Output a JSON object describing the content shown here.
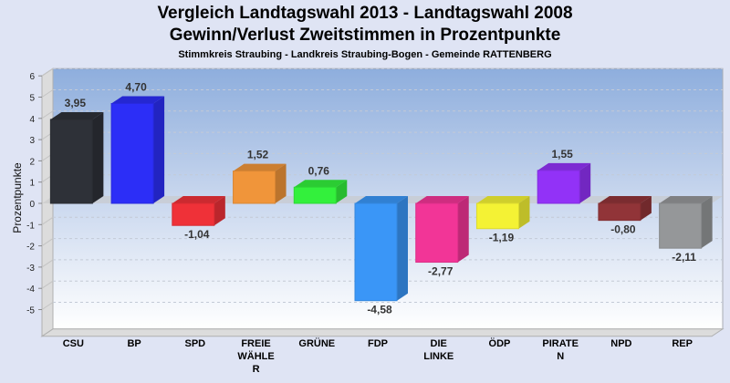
{
  "header": {
    "title_line1": "Vergleich Landtagswahl 2013 - Landtagswahl 2008",
    "title_line2": "Gewinn/Verlust Zweitstimmen in Prozentpunkte",
    "subtitle": "Stimmkreis Straubing - Landkreis Straubing-Bogen - Gemeinde RATTENBERG"
  },
  "chart_data": {
    "type": "bar",
    "title": "Vergleich Landtagswahl 2013 - Landtagswahl 2008 / Gewinn/Verlust Zweitstimmen in Prozentpunkte",
    "subtitle": "Stimmkreis Straubing - Landkreis Straubing-Bogen - Gemeinde RATTENBERG",
    "xlabel": "",
    "ylabel": "Prozentpunkte",
    "ylim": [
      -6,
      6
    ],
    "yticks": [
      6,
      5,
      4,
      3,
      2,
      1,
      0,
      -1,
      -2,
      -3,
      -4,
      -5
    ],
    "grid": true,
    "legend": "none",
    "categories": [
      [
        "CSU"
      ],
      [
        "BP"
      ],
      [
        "SPD"
      ],
      [
        "FREIE",
        "WÄHLE",
        "R"
      ],
      [
        "GRÜNE"
      ],
      [
        "FDP"
      ],
      [
        "DIE",
        "LINKE"
      ],
      [
        "ÖDP"
      ],
      [
        "PIRATE",
        "N"
      ],
      [
        "NPD"
      ],
      [
        "REP"
      ]
    ],
    "values": [
      3.95,
      4.7,
      -1.04,
      1.52,
      0.76,
      -4.58,
      -2.77,
      -1.19,
      1.55,
      -0.8,
      -2.11
    ],
    "value_labels": [
      "3,95",
      "4,70",
      "-1,04",
      "1,52",
      "0,76",
      "-4,58",
      "-2,77",
      "-1,19",
      "1,55",
      "-0,80",
      "-2,11"
    ],
    "colors": [
      "#2e3138",
      "#2c2ef7",
      "#ef3138",
      "#f0953a",
      "#33f03c",
      "#3a96f7",
      "#f23597",
      "#f4f234",
      "#9232f7",
      "#913438",
      "#959799"
    ]
  }
}
